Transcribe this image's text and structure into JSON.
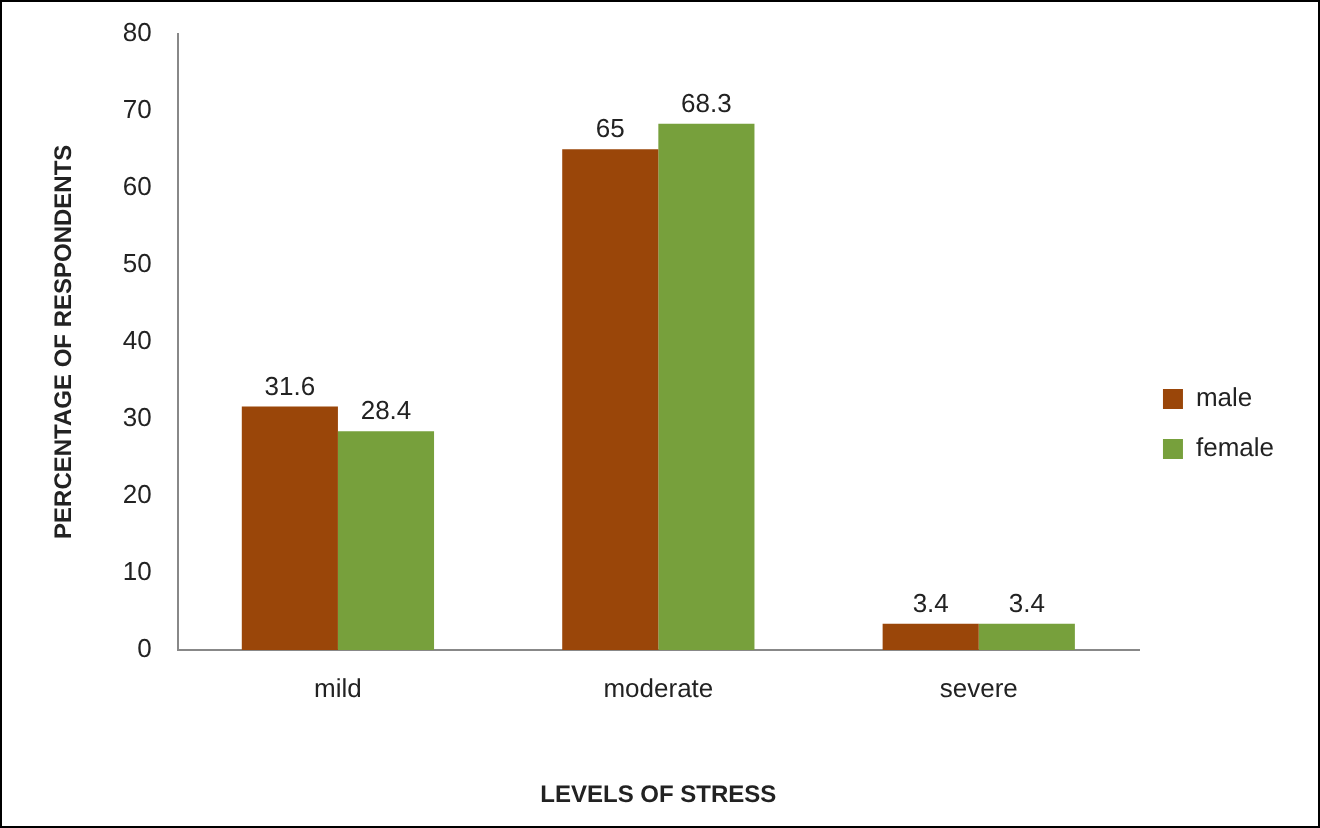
{
  "chart_data": {
    "type": "bar",
    "xlabel": "LEVELS OF STRESS",
    "ylabel": "PERCENTAGE OF RESPONDENTS",
    "categories": [
      "mild",
      "moderate",
      "severe"
    ],
    "series": [
      {
        "name": "male",
        "color": "#9a4609",
        "values": [
          31.6,
          65,
          3.4
        ]
      },
      {
        "name": "female",
        "color": "#77a03c",
        "values": [
          28.4,
          68.3,
          3.4
        ]
      }
    ],
    "ylim": [
      0,
      80
    ],
    "yticks": [
      0,
      10,
      20,
      30,
      40,
      50,
      60,
      70,
      80
    ],
    "grid": false,
    "legend": "right",
    "data_labels": true
  }
}
